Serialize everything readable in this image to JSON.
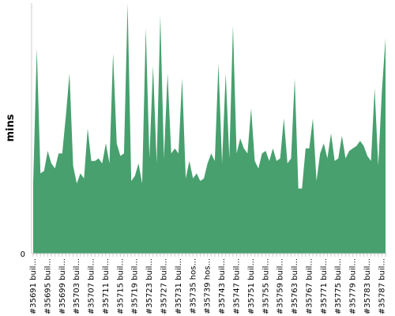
{
  "chart_data": {
    "type": "area",
    "title": "",
    "xlabel": "",
    "ylabel": "mins",
    "ylim": [
      0,
      100
    ],
    "y_ticks": [
      0
    ],
    "grid": false,
    "legend": "none",
    "colors": {
      "area": "#47a06e",
      "axis": "#cccccc",
      "background": "#ffffff"
    },
    "x_tick_labels": [
      "#35691 buil...",
      "#35695 buil...",
      "#35699 buil...",
      "#35703 buil...",
      "#35707 buil...",
      "#35711 buil...",
      "#35715 buil...",
      "#35719 buil...",
      "#35723 buil...",
      "#35727 buil...",
      "#35731 buil...",
      "#35735 hos...",
      "#35739 hos...",
      "#35743 buil...",
      "#35747 buil...",
      "#35751 buil...",
      "#35755 buil...",
      "#35759 buil...",
      "#35763 buil...",
      "#35767 buil...",
      "#35771 buil...",
      "#35775 buil...",
      "#35779 buil...",
      "#35783 buil...",
      "#35787 buil..."
    ],
    "values": [
      28,
      82,
      32,
      33,
      41,
      36,
      34,
      40,
      40,
      55,
      72,
      35,
      28,
      32,
      30,
      50,
      37,
      37,
      38,
      36,
      44,
      36,
      80,
      44,
      39,
      40,
      100,
      29,
      31,
      36,
      28,
      90,
      38,
      75,
      36,
      95,
      38,
      72,
      40,
      42,
      40,
      70,
      30,
      37,
      30,
      32,
      29,
      30,
      36,
      40,
      37,
      76,
      36,
      72,
      38,
      91,
      40,
      46,
      42,
      40,
      58,
      37,
      34,
      40,
      41,
      37,
      42,
      37,
      38,
      54,
      36,
      38,
      70,
      26,
      26,
      42,
      42,
      54,
      29,
      40,
      44,
      38,
      48,
      37,
      38,
      47,
      38,
      41,
      42,
      43,
      45,
      43,
      39,
      37,
      66,
      35,
      65,
      86
    ]
  }
}
